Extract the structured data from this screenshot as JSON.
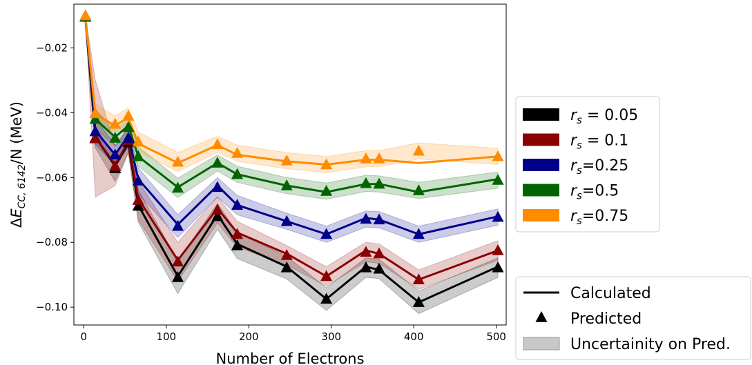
{
  "chart_data": {
    "type": "line",
    "title": "",
    "xlabel": "Number of Electrons",
    "ylabel_parts": {
      "prefix": "Δ",
      "main": "E",
      "sub": "CC, 6142",
      "suffix": "/N (MeV)"
    },
    "xlim": [
      -12,
      512
    ],
    "ylim": [
      -0.1055,
      -0.0065
    ],
    "xticks": [
      0,
      100,
      200,
      300,
      400,
      500
    ],
    "yticks": [
      -0.02,
      -0.04,
      -0.06,
      -0.08,
      -0.1
    ],
    "ytick_labels": [
      "−0.02",
      "−0.04",
      "−0.06",
      "−0.08",
      "−0.10"
    ],
    "x": [
      2,
      14,
      38,
      54,
      66,
      114,
      162,
      186,
      246,
      294,
      342,
      358,
      406,
      502
    ],
    "series": [
      {
        "label_var": "r",
        "label_sub": "s",
        "label_rest": " = 0.05",
        "color": "#000000",
        "calculated": [
          -0.0105,
          -0.0475,
          -0.0565,
          -0.0495,
          -0.0685,
          -0.0905,
          -0.0715,
          -0.0805,
          -0.0875,
          -0.0975,
          -0.0875,
          -0.0885,
          -0.0985,
          -0.0875
        ],
        "predicted": [
          -0.0105,
          -0.0478,
          -0.0572,
          -0.0492,
          -0.0688,
          -0.0908,
          -0.072,
          -0.081,
          -0.0878,
          -0.0975,
          -0.0878,
          -0.0882,
          -0.0985,
          -0.0878
        ],
        "uncertainty": [
          0.0005,
          0.003,
          0.004,
          0.003,
          0.005,
          0.005,
          0.004,
          0.004,
          0.0035,
          0.0035,
          0.003,
          0.003,
          0.0035,
          0.003
        ]
      },
      {
        "label_var": "r",
        "label_sub": "s",
        "label_rest": " = 0.1",
        "color": "#8b0000",
        "calculated": [
          -0.0105,
          -0.0475,
          -0.056,
          -0.049,
          -0.0665,
          -0.0855,
          -0.0695,
          -0.077,
          -0.0835,
          -0.0905,
          -0.0825,
          -0.0835,
          -0.0915,
          -0.0825
        ],
        "predicted": [
          -0.0105,
          -0.048,
          -0.0565,
          -0.0485,
          -0.067,
          -0.086,
          -0.07,
          -0.0775,
          -0.084,
          -0.0905,
          -0.083,
          -0.0835,
          -0.0915,
          -0.0825
        ],
        "uncertainty": [
          0.0005,
          0.018,
          0.006,
          0.004,
          0.006,
          0.006,
          0.004,
          0.004,
          0.003,
          0.003,
          0.003,
          0.003,
          0.003,
          0.003
        ]
      },
      {
        "label_var": "r",
        "label_sub": "s",
        "label_rest": "=0.25",
        "color": "#00008b",
        "calculated": [
          -0.0105,
          -0.0455,
          -0.053,
          -0.047,
          -0.0605,
          -0.0745,
          -0.0625,
          -0.0685,
          -0.0735,
          -0.0775,
          -0.0725,
          -0.073,
          -0.0775,
          -0.072
        ],
        "predicted": [
          -0.0105,
          -0.0458,
          -0.053,
          -0.0478,
          -0.061,
          -0.075,
          -0.063,
          -0.0685,
          -0.0735,
          -0.0775,
          -0.0728,
          -0.073,
          -0.0775,
          -0.0722
        ],
        "uncertainty": [
          0.0005,
          0.004,
          0.003,
          0.003,
          0.004,
          0.0035,
          0.003,
          0.003,
          0.0025,
          0.0025,
          0.0025,
          0.0025,
          0.0025,
          0.0025
        ]
      },
      {
        "label_var": "r",
        "label_sub": "s",
        "label_rest": "=0.5",
        "color": "#006400",
        "calculated": [
          -0.0105,
          -0.042,
          -0.0475,
          -0.044,
          -0.0535,
          -0.063,
          -0.0555,
          -0.059,
          -0.0625,
          -0.0645,
          -0.062,
          -0.062,
          -0.0645,
          -0.0605
        ],
        "predicted": [
          -0.0105,
          -0.042,
          -0.0478,
          -0.0445,
          -0.0535,
          -0.0632,
          -0.0555,
          -0.059,
          -0.0625,
          -0.0642,
          -0.0618,
          -0.062,
          -0.064,
          -0.0608
        ],
        "uncertainty": [
          0.0005,
          0.003,
          0.0025,
          0.0025,
          0.003,
          0.003,
          0.0025,
          0.0025,
          0.0025,
          0.0025,
          0.0025,
          0.0025,
          0.0025,
          0.0025
        ]
      },
      {
        "label_var": "r",
        "label_sub": "s",
        "label_rest": "=0.75",
        "color": "#ff8c00",
        "calculated": [
          -0.0105,
          -0.0405,
          -0.044,
          -0.0415,
          -0.0495,
          -0.0555,
          -0.05,
          -0.053,
          -0.055,
          -0.056,
          -0.0545,
          -0.0545,
          -0.0555,
          -0.0535
        ],
        "predicted": [
          -0.01,
          -0.0402,
          -0.0435,
          -0.041,
          -0.049,
          -0.0552,
          -0.0498,
          -0.0525,
          -0.0548,
          -0.056,
          -0.0542,
          -0.0542,
          -0.0518,
          -0.0535
        ],
        "uncertainty": [
          0.0005,
          0.003,
          0.0025,
          0.0025,
          0.003,
          0.003,
          0.0025,
          0.0025,
          0.0025,
          0.0025,
          0.0025,
          0.0025,
          0.0025,
          0.0025
        ]
      }
    ],
    "legend_series_placement": "right",
    "legend_markers": [
      {
        "label": "Calculated",
        "kind": "line"
      },
      {
        "label": "Predicted",
        "kind": "triangle"
      },
      {
        "label": "Uncertainity on Pred.",
        "kind": "band"
      }
    ],
    "legend_markers_placement": "bottom-right"
  }
}
